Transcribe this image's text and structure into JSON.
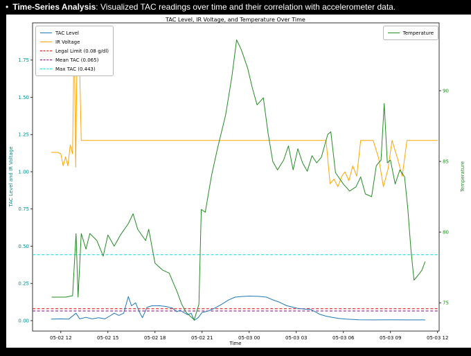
{
  "header": {
    "bullet": "•",
    "bold": "Time-Series Analysis",
    "rest": ": Visualized TAC readings over time and their correlation with accelerometer data."
  },
  "chart_data": {
    "type": "line",
    "title": "TAC Level, IR Voltage, and Temperature Over Time",
    "xlabel": "Time",
    "ylabel_left": "TAC Level and IR Voltage",
    "ylabel_right": "Temperature",
    "x_unit": "hours since 05-02 12:00",
    "xlim": [
      -1.8,
      24.1
    ],
    "left_ylim": [
      -0.07,
      2.0
    ],
    "right_ylim": [
      73.0,
      94.8
    ],
    "x_ticks": [
      0,
      3,
      6,
      9,
      12,
      15,
      18,
      21,
      24
    ],
    "x_tick_labels": [
      "05-02 12",
      "05-02 15",
      "05-02 18",
      "05-02 21",
      "05-03 00",
      "05-03 03",
      "05-03 06",
      "05-03 09",
      "05-03 12"
    ],
    "left_ticks": [
      0.0,
      0.25,
      0.5,
      0.75,
      1.0,
      1.25,
      1.5,
      1.75
    ],
    "left_tick_labels": [
      "0.00",
      "0.25",
      "0.50",
      "0.75",
      "1.00",
      "1.25",
      "1.50",
      "1.75"
    ],
    "right_ticks": [
      75,
      80,
      85,
      90
    ],
    "right_tick_labels": [
      "75",
      "80",
      "85",
      "90"
    ],
    "grid": false,
    "reference_lines": [
      {
        "name": "legal-limit-line",
        "label": "Legal Limit (0.08 g/dl)",
        "value": 0.08,
        "axis": "left",
        "color": "#dd0000",
        "dash": true
      },
      {
        "name": "mean-tac-line",
        "label": "Mean TAC (0.065)",
        "value": 0.065,
        "axis": "left",
        "color": "#800080",
        "dash": true
      },
      {
        "name": "max-tac-line",
        "label": "Max TAC (0.443)",
        "value": 0.443,
        "axis": "left",
        "color": "#00dcdc",
        "dash": true
      }
    ],
    "series": [
      {
        "name": "TAC Level",
        "axis": "left",
        "color": "#1f77b4",
        "dash": false,
        "points": [
          [
            -0.6,
            0.01
          ],
          [
            0,
            0.012
          ],
          [
            0.5,
            0.01
          ],
          [
            0.97,
            0.05
          ],
          [
            1.2,
            0.012
          ],
          [
            1.6,
            0.022
          ],
          [
            2.0,
            0.012
          ],
          [
            2.4,
            0.02
          ],
          [
            2.8,
            0.012
          ],
          [
            3.1,
            0.03
          ],
          [
            3.4,
            0.05
          ],
          [
            3.7,
            0.035
          ],
          [
            4.0,
            0.05
          ],
          [
            4.3,
            0.162
          ],
          [
            4.5,
            0.1
          ],
          [
            4.76,
            0.12
          ],
          [
            5.0,
            0.06
          ],
          [
            5.2,
            0.02
          ],
          [
            5.5,
            0.09
          ],
          [
            5.8,
            0.1
          ],
          [
            6.3,
            0.1
          ],
          [
            6.7,
            0.095
          ],
          [
            7.1,
            0.085
          ],
          [
            7.4,
            0.06
          ],
          [
            7.6,
            0.07
          ],
          [
            7.9,
            0.05
          ],
          [
            8.1,
            0.04
          ],
          [
            8.3,
            0.05
          ],
          [
            8.5,
            0.002
          ],
          [
            8.75,
            0.02
          ],
          [
            9.0,
            0.055
          ],
          [
            9.4,
            0.065
          ],
          [
            9.8,
            0.084
          ],
          [
            10.2,
            0.107
          ],
          [
            10.7,
            0.14
          ],
          [
            11.1,
            0.158
          ],
          [
            11.5,
            0.162
          ],
          [
            12.0,
            0.165
          ],
          [
            12.6,
            0.163
          ],
          [
            13.1,
            0.158
          ],
          [
            13.5,
            0.14
          ],
          [
            13.9,
            0.125
          ],
          [
            14.4,
            0.1
          ],
          [
            14.8,
            0.09
          ],
          [
            15.1,
            0.082
          ],
          [
            15.5,
            0.078
          ],
          [
            15.9,
            0.075
          ],
          [
            16.2,
            0.06
          ],
          [
            16.5,
            0.042
          ],
          [
            16.9,
            0.03
          ],
          [
            17.3,
            0.022
          ],
          [
            17.7,
            0.015
          ],
          [
            18.2,
            0.01
          ],
          [
            19.0,
            0.006
          ],
          [
            20.0,
            0.005
          ],
          [
            21.0,
            0.006
          ],
          [
            22.0,
            0.005
          ],
          [
            23.2,
            0.005
          ]
        ]
      },
      {
        "name": "IR Voltage",
        "axis": "left",
        "color": "#ffa500",
        "dash": false,
        "points": [
          [
            -0.6,
            1.13
          ],
          [
            -0.2,
            1.13
          ],
          [
            0.0,
            1.12
          ],
          [
            0.15,
            1.04
          ],
          [
            0.3,
            1.1
          ],
          [
            0.45,
            1.04
          ],
          [
            0.6,
            1.18
          ],
          [
            0.75,
            1.12
          ],
          [
            0.85,
            1.95
          ],
          [
            0.95,
            1.03
          ],
          [
            1.05,
            1.95
          ],
          [
            1.15,
            1.93
          ],
          [
            1.3,
            1.21
          ],
          [
            3,
            1.21
          ],
          [
            6,
            1.21
          ],
          [
            9,
            1.21
          ],
          [
            12,
            1.21
          ],
          [
            15,
            1.21
          ],
          [
            16.9,
            1.21
          ],
          [
            17.15,
            0.92
          ],
          [
            17.4,
            0.95
          ],
          [
            17.65,
            0.9
          ],
          [
            17.9,
            0.97
          ],
          [
            18.1,
            1.0
          ],
          [
            18.35,
            0.94
          ],
          [
            18.6,
            1.04
          ],
          [
            18.85,
            0.97
          ],
          [
            19.1,
            1.21
          ],
          [
            19.9,
            1.21
          ],
          [
            20.25,
            1.09
          ],
          [
            20.55,
            0.9
          ],
          [
            20.85,
            1.02
          ],
          [
            21.1,
            1.21
          ],
          [
            21.45,
            1.09
          ],
          [
            21.75,
            0.97
          ],
          [
            22.05,
            1.21
          ],
          [
            24.0,
            1.21
          ]
        ]
      },
      {
        "name": "Temperature",
        "axis": "right",
        "color": "#228b22",
        "dash": false,
        "points": [
          [
            -0.57,
            75.4
          ],
          [
            0.3,
            75.4
          ],
          [
            0.75,
            75.5
          ],
          [
            0.97,
            79.9
          ],
          [
            1.1,
            75.4
          ],
          [
            1.3,
            79.9
          ],
          [
            1.6,
            78.8
          ],
          [
            1.85,
            79.9
          ],
          [
            2.3,
            79.4
          ],
          [
            2.7,
            78.3
          ],
          [
            3.0,
            79.8
          ],
          [
            3.4,
            79.0
          ],
          [
            3.8,
            79.8
          ],
          [
            4.3,
            80.6
          ],
          [
            4.6,
            81.3
          ],
          [
            4.9,
            80.2
          ],
          [
            5.4,
            79.4
          ],
          [
            5.6,
            80.2
          ],
          [
            6.0,
            77.8
          ],
          [
            6.5,
            77.3
          ],
          [
            6.9,
            77.1
          ],
          [
            7.4,
            75.8
          ],
          [
            7.7,
            74.9
          ],
          [
            8.0,
            74.3
          ],
          [
            8.5,
            73.8
          ],
          [
            8.8,
            74.9
          ],
          [
            8.95,
            81.6
          ],
          [
            9.2,
            81.4
          ],
          [
            9.6,
            84.0
          ],
          [
            10.0,
            86.0
          ],
          [
            10.5,
            88.3
          ],
          [
            10.9,
            91.0
          ],
          [
            11.2,
            93.6
          ],
          [
            11.5,
            92.9
          ],
          [
            11.9,
            91.6
          ],
          [
            12.2,
            90.2
          ],
          [
            12.5,
            89.0
          ],
          [
            12.9,
            89.5
          ],
          [
            13.2,
            87.0
          ],
          [
            13.5,
            85.0
          ],
          [
            13.8,
            84.4
          ],
          [
            14.2,
            85.1
          ],
          [
            14.5,
            86.1
          ],
          [
            14.8,
            84.4
          ],
          [
            15.1,
            85.9
          ],
          [
            15.4,
            84.9
          ],
          [
            15.7,
            84.3
          ],
          [
            16.0,
            85.4
          ],
          [
            16.3,
            84.9
          ],
          [
            16.6,
            85.3
          ],
          [
            17.0,
            86.9
          ],
          [
            17.2,
            87.1
          ],
          [
            17.5,
            84.2
          ],
          [
            18.0,
            83.4
          ],
          [
            18.4,
            82.9
          ],
          [
            18.8,
            83.2
          ],
          [
            19.1,
            83.9
          ],
          [
            19.4,
            82.7
          ],
          [
            19.8,
            82.5
          ],
          [
            20.1,
            84.7
          ],
          [
            20.4,
            85.1
          ],
          [
            20.6,
            89.1
          ],
          [
            20.8,
            84.9
          ],
          [
            21.0,
            85.1
          ],
          [
            21.3,
            83.4
          ],
          [
            21.6,
            84.4
          ],
          [
            21.9,
            83.9
          ],
          [
            22.1,
            81.7
          ],
          [
            22.3,
            78.8
          ],
          [
            22.5,
            76.6
          ],
          [
            22.8,
            77.0
          ],
          [
            23.0,
            77.3
          ],
          [
            23.2,
            77.9
          ]
        ]
      }
    ],
    "legends": {
      "upper_left": [
        {
          "label": "TAC Level",
          "color": "#1f77b4",
          "dash": false
        },
        {
          "label": "IR Voltage",
          "color": "#ffa500",
          "dash": false
        },
        {
          "label": "Legal Limit (0.08 g/dl)",
          "color": "#dd0000",
          "dash": true
        },
        {
          "label": "Mean TAC (0.065)",
          "color": "#800080",
          "dash": true
        },
        {
          "label": "Max TAC (0.443)",
          "color": "#00dcdc",
          "dash": true
        }
      ],
      "upper_right": [
        {
          "label": "Temperature",
          "color": "#228b22",
          "dash": false
        }
      ]
    },
    "colors": {
      "axis_label_left": "#008b8b",
      "axis_label_right": "#228b22",
      "tick_label_left": "#008b8b",
      "tick_label_right": "#228b22",
      "tick_label_x": "#000000",
      "figure_bg": "#ffffff",
      "page_bg": "#000000"
    }
  }
}
